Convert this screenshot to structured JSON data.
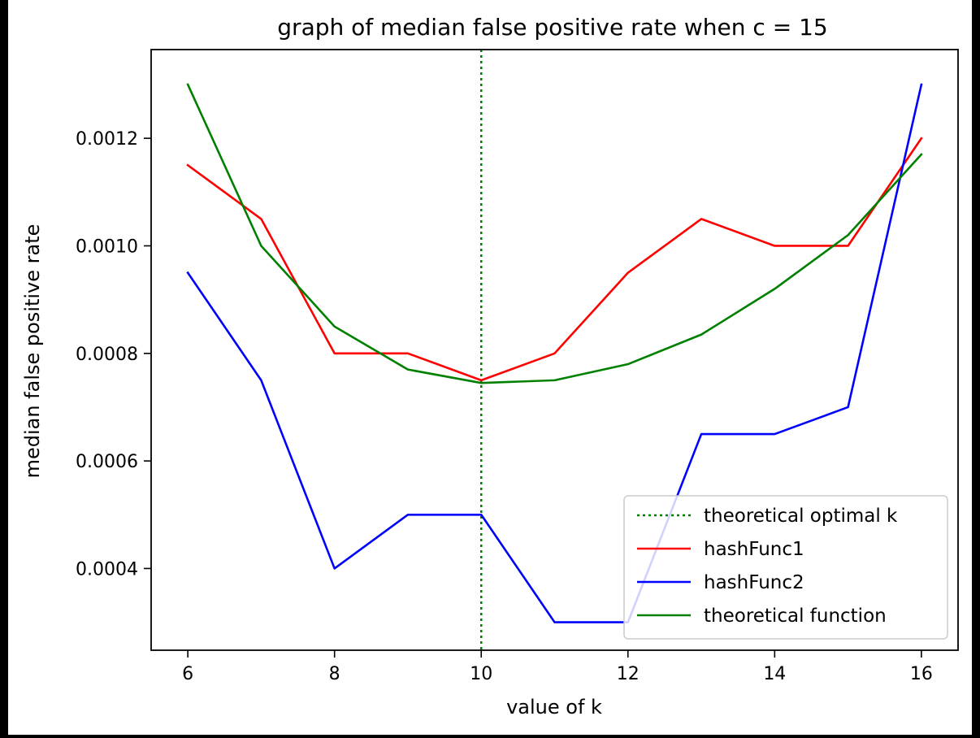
{
  "chart_data": {
    "type": "line",
    "title": "graph of median false positive rate when c = 15",
    "xlabel": "value of k",
    "ylabel": "median false positive rate",
    "x": [
      6,
      7,
      8,
      9,
      10,
      11,
      12,
      13,
      14,
      15,
      16
    ],
    "xlim": [
      5.5,
      16.5
    ],
    "ylim": [
      0.000248,
      0.001365
    ],
    "xticks": [
      6,
      8,
      10,
      12,
      14,
      16
    ],
    "xtick_labels": [
      "6",
      "8",
      "10",
      "12",
      "14",
      "16"
    ],
    "yticks": [
      0.0004,
      0.0006,
      0.0008,
      0.001,
      0.0012
    ],
    "ytick_labels": [
      "0.0004",
      "0.0006",
      "0.0008",
      "0.0010",
      "0.0012"
    ],
    "vline": {
      "name": "theoretical optimal k",
      "x": 10,
      "color": "#008000",
      "style": "dotted"
    },
    "series": [
      {
        "name": "hashFunc1",
        "color": "#ff0000",
        "values": [
          0.00115,
          0.00105,
          0.0008,
          0.0008,
          0.00075,
          0.0008,
          0.00095,
          0.00105,
          0.001,
          0.001,
          0.0012
        ]
      },
      {
        "name": "hashFunc2",
        "color": "#0000ff",
        "values": [
          0.00095,
          0.00075,
          0.0004,
          0.0005,
          0.0005,
          0.0003,
          0.0003,
          0.00065,
          0.00065,
          0.0007,
          0.0013
        ]
      },
      {
        "name": "theoretical function",
        "color": "#008000",
        "values": [
          0.0013,
          0.001,
          0.00085,
          0.00077,
          0.000745,
          0.00075,
          0.00078,
          0.000835,
          0.00092,
          0.00102,
          0.00117
        ]
      }
    ],
    "legend": {
      "placement": "lower right",
      "entries": [
        "theoretical optimal k",
        "hashFunc1",
        "hashFunc2",
        "theoretical function"
      ]
    },
    "grid": false
  }
}
